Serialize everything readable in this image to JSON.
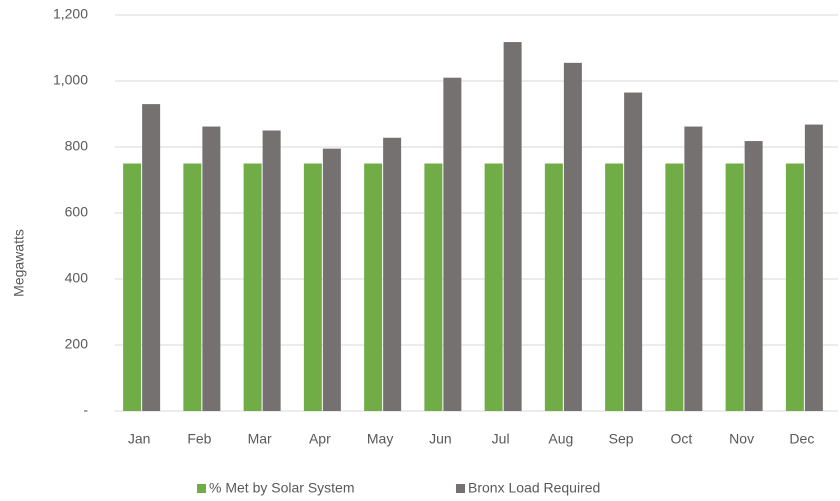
{
  "chart_data": {
    "type": "bar",
    "y_label": "Megawatts",
    "categories": [
      "Jan",
      "Feb",
      "Mar",
      "Apr",
      "May",
      "Jun",
      "Jul",
      "Aug",
      "Sep",
      "Oct",
      "Nov",
      "Dec"
    ],
    "series": [
      {
        "name": "% Met by Solar System",
        "color": "#70ad47",
        "values": [
          750,
          750,
          750,
          750,
          750,
          750,
          750,
          750,
          750,
          750,
          750,
          750
        ]
      },
      {
        "name": "Bronx Load Required",
        "color": "#767171",
        "values": [
          930,
          862,
          850,
          795,
          828,
          1010,
          1118,
          1055,
          965,
          862,
          818,
          868
        ]
      }
    ],
    "ylim": [
      0,
      1200
    ],
    "yticks": [
      {
        "value": 0,
        "label": "-"
      },
      200,
      400,
      600,
      800,
      {
        "value": 1000,
        "label": "1,000"
      },
      {
        "value": 1200,
        "label": "1,200"
      }
    ],
    "grid": true,
    "legend": "bottom"
  }
}
